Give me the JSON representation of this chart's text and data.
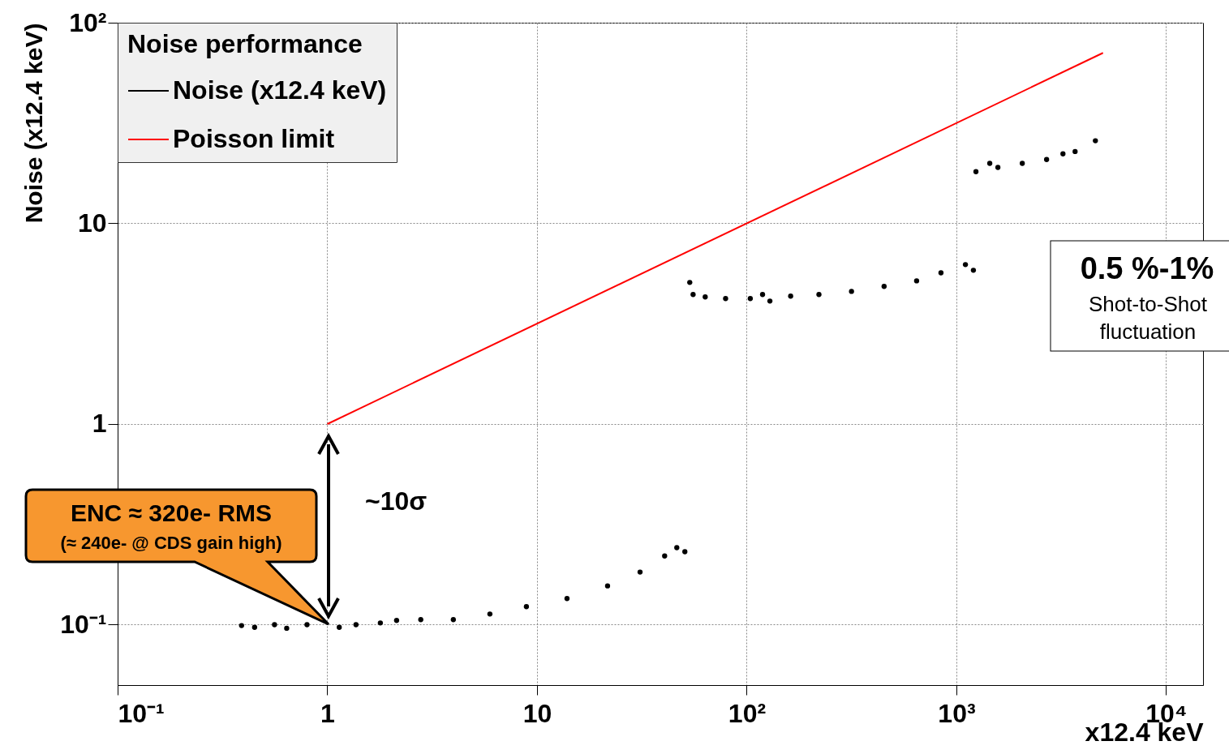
{
  "chart_data": {
    "type": "scatter",
    "xlabel": "x12.4 keV",
    "ylabel": "Noise (x12.4 keV)",
    "legend_title": "Noise performance",
    "log": "xy",
    "grid": true,
    "legend": "top left",
    "xlim": [
      0.1,
      15000
    ],
    "ylim": [
      0.05,
      100
    ],
    "xticks": [
      {
        "value": 0.1,
        "label": "10⁻¹"
      },
      1,
      10,
      {
        "value": 100,
        "label": "10²"
      },
      {
        "value": 1000,
        "label": "10³"
      },
      {
        "value": 10000,
        "label": "10⁴"
      }
    ],
    "yticks": [
      {
        "value": 0.1,
        "label": "10⁻¹"
      },
      1,
      10,
      {
        "value": 100,
        "label": "10²"
      }
    ],
    "series": [
      {
        "name": "Noise (x12.4 keV)",
        "color": "#000000",
        "marker": "circle",
        "x": [
          0.39,
          0.45,
          0.56,
          0.64,
          0.8,
          0.96,
          1.14,
          1.37,
          1.79,
          2.14,
          2.79,
          3.99,
          5.96,
          8.9,
          13.9,
          21.7,
          31,
          40.6,
          46.4,
          50.7,
          53.5,
          55.5,
          63.4,
          79.3,
          104,
          119,
          129,
          162,
          221,
          316,
          452,
          646,
          844,
          1104,
          1205,
          1239,
          1442,
          1577,
          2061,
          2692,
          3221,
          3681,
          4600
        ],
        "values": [
          0.099,
          0.097,
          0.1,
          0.096,
          0.1,
          null,
          0.097,
          0.1,
          0.102,
          0.105,
          0.106,
          0.106,
          0.113,
          0.123,
          0.135,
          0.156,
          0.183,
          0.22,
          0.242,
          0.231,
          5.08,
          4.42,
          4.3,
          4.22,
          4.22,
          4.42,
          4.1,
          4.34,
          4.42,
          4.58,
          4.85,
          5.17,
          5.67,
          6.23,
          5.84,
          18.1,
          19.9,
          19,
          19.9,
          20.8,
          22.2,
          22.8,
          25.8
        ]
      },
      {
        "name": "Poisson limit",
        "type": "line",
        "color": "#ff0000",
        "marker": "none",
        "line_style": "solid",
        "x": [
          1,
          5000
        ],
        "values": [
          1,
          70.7
        ]
      }
    ],
    "annotations": [
      "~10σ",
      "ENC ≈ 320e- RMS",
      "(≈ 240e- @ CDS gain high)",
      "0.5 %-1%",
      "Shot-to-Shot fluctuation"
    ]
  }
}
